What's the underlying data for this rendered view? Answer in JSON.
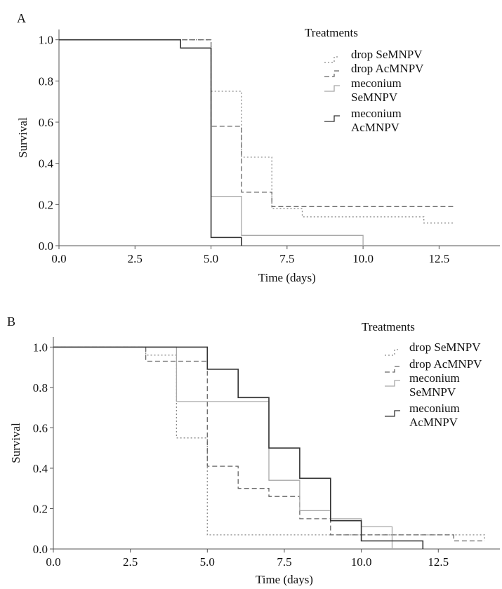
{
  "figure": {
    "panels": [
      {
        "label": "A"
      },
      {
        "label": "B"
      }
    ]
  },
  "chart_data": [
    {
      "type": "line",
      "step": true,
      "panel_label": "A",
      "title": "",
      "xlabel": "Time (days)",
      "ylabel": "Survival",
      "xlim": [
        0,
        14.5
      ],
      "ylim": [
        0,
        1.05
      ],
      "x_ticks": [
        "0.0",
        "2.5",
        "5.0",
        "7.5",
        "10.0",
        "12.5"
      ],
      "y_ticks": [
        "0.0",
        "0.2",
        "0.4",
        "0.6",
        "0.8",
        "1.0"
      ],
      "grid": false,
      "legend_title": "Treatments",
      "legend_position": "top-right",
      "series": [
        {
          "name": "drop SeMNPV",
          "color": "#8a8a8a",
          "dash": "dotted",
          "points": [
            [
              0,
              1.0
            ],
            [
              5,
              1.0
            ],
            [
              5,
              0.75
            ],
            [
              6,
              0.75
            ],
            [
              6,
              0.43
            ],
            [
              7,
              0.43
            ],
            [
              7,
              0.18
            ],
            [
              8,
              0.18
            ],
            [
              8,
              0.14
            ],
            [
              12,
              0.14
            ],
            [
              12,
              0.11
            ],
            [
              13,
              0.11
            ]
          ]
        },
        {
          "name": "drop AcMNPV",
          "color": "#666666",
          "dash": "dashed",
          "points": [
            [
              0,
              1.0
            ],
            [
              5,
              1.0
            ],
            [
              5,
              0.58
            ],
            [
              6,
              0.58
            ],
            [
              6,
              0.26
            ],
            [
              7,
              0.26
            ],
            [
              7,
              0.19
            ],
            [
              13,
              0.19
            ]
          ]
        },
        {
          "name": "meconium SeMNPV",
          "color": "#a8a8a8",
          "dash": "solid",
          "points": [
            [
              0,
              1.0
            ],
            [
              4,
              1.0
            ],
            [
              4,
              0.96
            ],
            [
              5,
              0.96
            ],
            [
              5,
              0.24
            ],
            [
              6,
              0.24
            ],
            [
              6,
              0.05
            ],
            [
              10,
              0.05
            ],
            [
              10,
              0.0
            ]
          ]
        },
        {
          "name": "meconium AcMNPV",
          "color": "#333333",
          "dash": "solid",
          "points": [
            [
              0,
              1.0
            ],
            [
              4,
              1.0
            ],
            [
              4,
              0.96
            ],
            [
              5,
              0.96
            ],
            [
              5,
              0.04
            ],
            [
              6,
              0.04
            ],
            [
              6,
              0.0
            ]
          ]
        }
      ]
    },
    {
      "type": "line",
      "step": true,
      "panel_label": "B",
      "title": "",
      "xlabel": "Time (days)",
      "ylabel": "Survival",
      "xlim": [
        0,
        14.5
      ],
      "ylim": [
        0,
        1.05
      ],
      "x_ticks": [
        "0.0",
        "2.5",
        "5.0",
        "7.5",
        "10.0",
        "12.5"
      ],
      "y_ticks": [
        "0.0",
        "0.2",
        "0.4",
        "0.6",
        "0.8",
        "1.0"
      ],
      "grid": false,
      "legend_title": "Treatments",
      "legend_position": "top-right",
      "series": [
        {
          "name": "drop SeMNPV",
          "color": "#8a8a8a",
          "dash": "dotted",
          "points": [
            [
              0,
              1.0
            ],
            [
              3,
              1.0
            ],
            [
              3,
              0.96
            ],
            [
              4,
              0.96
            ],
            [
              4,
              0.55
            ],
            [
              5,
              0.55
            ],
            [
              5,
              0.07
            ],
            [
              14,
              0.07
            ],
            [
              14,
              0.04
            ]
          ]
        },
        {
          "name": "drop AcMNPV",
          "color": "#666666",
          "dash": "dashed",
          "points": [
            [
              0,
              1.0
            ],
            [
              3,
              1.0
            ],
            [
              3,
              0.93
            ],
            [
              5,
              0.93
            ],
            [
              5,
              0.41
            ],
            [
              6,
              0.41
            ],
            [
              6,
              0.3
            ],
            [
              7,
              0.3
            ],
            [
              7,
              0.26
            ],
            [
              8,
              0.26
            ],
            [
              8,
              0.15
            ],
            [
              9,
              0.15
            ],
            [
              9,
              0.07
            ],
            [
              13,
              0.07
            ],
            [
              13,
              0.04
            ],
            [
              14,
              0.04
            ]
          ]
        },
        {
          "name": "meconium SeMNPV",
          "color": "#a8a8a8",
          "dash": "solid",
          "points": [
            [
              0,
              1.0
            ],
            [
              4,
              1.0
            ],
            [
              4,
              0.73
            ],
            [
              7,
              0.73
            ],
            [
              7,
              0.34
            ],
            [
              8,
              0.34
            ],
            [
              8,
              0.19
            ],
            [
              9,
              0.19
            ],
            [
              9,
              0.15
            ],
            [
              10,
              0.15
            ],
            [
              10,
              0.11
            ],
            [
              11,
              0.11
            ],
            [
              11,
              0.0
            ]
          ]
        },
        {
          "name": "meconium AcMNPV",
          "color": "#333333",
          "dash": "solid",
          "points": [
            [
              0,
              1.0
            ],
            [
              5,
              1.0
            ],
            [
              5,
              0.89
            ],
            [
              6,
              0.89
            ],
            [
              6,
              0.75
            ],
            [
              7,
              0.75
            ],
            [
              7,
              0.5
            ],
            [
              8,
              0.5
            ],
            [
              8,
              0.35
            ],
            [
              9,
              0.35
            ],
            [
              9,
              0.14
            ],
            [
              10,
              0.14
            ],
            [
              10,
              0.04
            ],
            [
              12,
              0.04
            ],
            [
              12,
              0.0
            ]
          ]
        }
      ]
    }
  ]
}
